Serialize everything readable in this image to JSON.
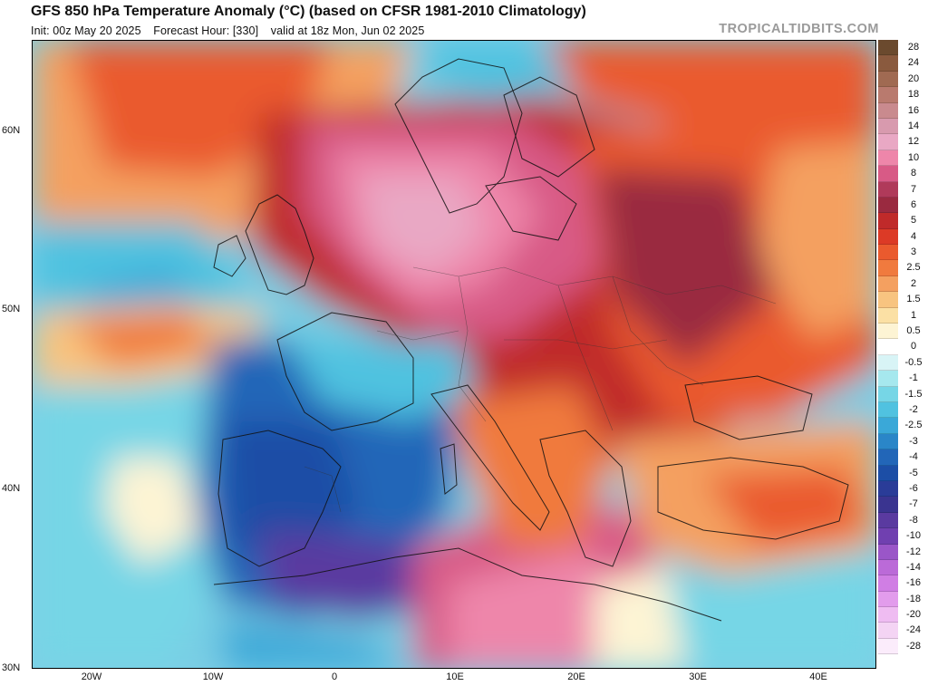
{
  "header": {
    "title": "GFS 850 hPa Temperature Anomaly (°C) (based on CFSR 1981-2010 Climatology)",
    "init": "Init: 00z May 20 2025",
    "forecast_hour": "Forecast Hour: [330]",
    "valid": "valid at 18z Mon, Jun 02 2025",
    "brand": "TROPICALTIDBITS.COM"
  },
  "axes": {
    "lat_labels": [
      "60N",
      "50N",
      "40N",
      "30N"
    ],
    "lon_labels": [
      "20W",
      "10W",
      "0",
      "10E",
      "20E",
      "30E",
      "40E"
    ]
  },
  "colorbar": {
    "labels": [
      "28",
      "24",
      "20",
      "18",
      "16",
      "14",
      "12",
      "10",
      "8",
      "7",
      "6",
      "5",
      "4",
      "3",
      "2.5",
      "2",
      "1.5",
      "1",
      "0.5",
      "0",
      "-0.5",
      "-1",
      "-1.5",
      "-2",
      "-2.5",
      "-3",
      "-4",
      "-5",
      "-6",
      "-7",
      "-8",
      "-10",
      "-12",
      "-14",
      "-16",
      "-18",
      "-20",
      "-24",
      "-28"
    ],
    "colors": [
      "#6b4a2e",
      "#8a5a3e",
      "#a06a52",
      "#b97a6e",
      "#c98a8e",
      "#d89aae",
      "#e9a8c4",
      "#ee86aa",
      "#d85a86",
      "#b03a5a",
      "#9a2a40",
      "#c02a2a",
      "#dc3a26",
      "#ea5a2e",
      "#f07a3e",
      "#f4a060",
      "#f8c480",
      "#fbe0a4",
      "#fdf4d4",
      "#ffffff",
      "#d8f4f6",
      "#a6e8ee",
      "#76d6e6",
      "#50c2e0",
      "#3aa8d8",
      "#2a86c8",
      "#2266b8",
      "#1c4ea6",
      "#2a3c98",
      "#3a3490",
      "#5a3aa0",
      "#7040b0",
      "#9a56c8",
      "#bb6ad8",
      "#d07ee4",
      "#e29cec",
      "#efbcf2",
      "#f4d4f4",
      "#fbecfb"
    ]
  }
}
